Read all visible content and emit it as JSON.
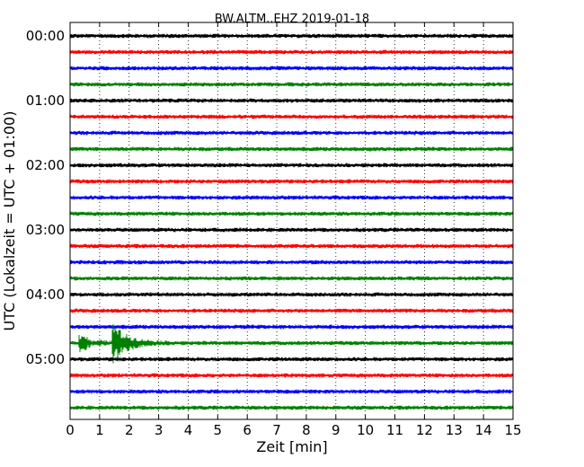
{
  "chart_data": {
    "type": "line",
    "title": "BW.ALTM..EHZ 2019-01-18",
    "xlabel": "Zeit  [min]",
    "ylabel": "UTC (Lokalzeit = UTC + 01:00)",
    "xlim": [
      0,
      15
    ],
    "x_ticks": [
      0,
      1,
      2,
      3,
      4,
      5,
      6,
      7,
      8,
      9,
      10,
      11,
      12,
      13,
      14,
      15
    ],
    "y_tick_labels": [
      "00:00",
      "01:00",
      "02:00",
      "03:00",
      "04:00",
      "05:00"
    ],
    "grid": "vertical dotted",
    "trace_minutes": 15,
    "trace_start_times": [
      "00:00",
      "00:15",
      "00:30",
      "00:45",
      "01:00",
      "01:15",
      "01:30",
      "01:45",
      "02:00",
      "02:15",
      "02:30",
      "02:45",
      "03:00",
      "03:15",
      "03:30",
      "03:45",
      "04:00",
      "04:15",
      "04:30",
      "04:45",
      "05:00",
      "05:15",
      "05:30",
      "05:45"
    ],
    "color_cycle": [
      "#000000",
      "#ff0000",
      "#0000ff",
      "#008000"
    ],
    "event": {
      "trace_start": "04:45",
      "onset_min": 0.3,
      "second_phase_min": 1.4,
      "coda_end_min": 3.5
    }
  }
}
